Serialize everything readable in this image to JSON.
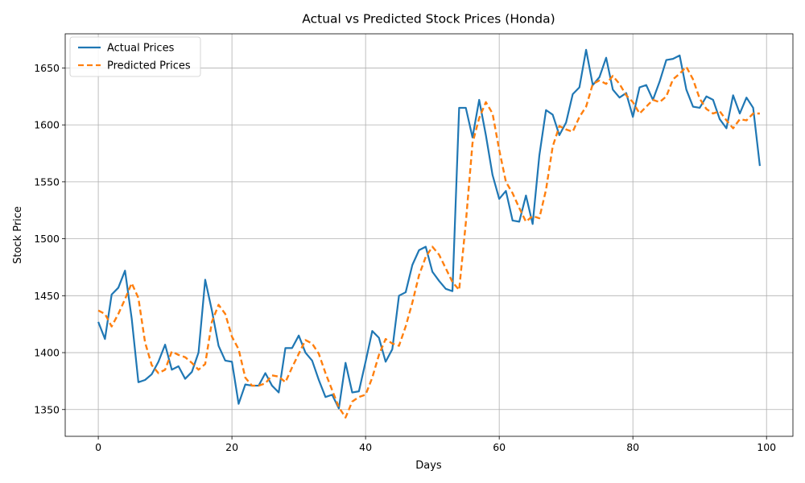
{
  "chart_data": {
    "type": "line",
    "title": "Actual vs Predicted Stock Prices (Honda)",
    "xlabel": "Days",
    "ylabel": "Stock Price",
    "xlim": [
      -4.95,
      103.95
    ],
    "ylim": [
      1326.5,
      1680
    ],
    "xticks": [
      0,
      20,
      40,
      60,
      80,
      100
    ],
    "yticks": [
      1350,
      1400,
      1450,
      1500,
      1550,
      1600,
      1650
    ],
    "grid": true,
    "legend_position": "top-left",
    "series": [
      {
        "name": "Actual Prices",
        "color": "#1f77b4",
        "style": "solid",
        "values": [
          1427,
          1412,
          1451,
          1457,
          1472,
          1430,
          1374,
          1376,
          1381,
          1392,
          1407,
          1385,
          1388,
          1377,
          1383,
          1400,
          1464,
          1437,
          1406,
          1393,
          1392,
          1355,
          1372,
          1371,
          1371,
          1382,
          1371,
          1365,
          1404,
          1404,
          1415,
          1400,
          1393,
          1376,
          1361,
          1363,
          1351,
          1391,
          1365,
          1366,
          1392,
          1419,
          1413,
          1392,
          1403,
          1450,
          1453,
          1477,
          1490,
          1493,
          1471,
          1463,
          1456,
          1454,
          1615,
          1615,
          1589,
          1622,
          1591,
          1556,
          1535,
          1542,
          1516,
          1515,
          1538,
          1513,
          1573,
          1613,
          1609,
          1591,
          1602,
          1627,
          1633,
          1666,
          1635,
          1642,
          1659,
          1631,
          1624,
          1628,
          1607,
          1633,
          1635,
          1622,
          1638,
          1657,
          1658,
          1661,
          1631,
          1616,
          1615,
          1625,
          1622,
          1605,
          1597,
          1626,
          1610,
          1624,
          1615,
          1564
        ]
      },
      {
        "name": "Predicted Prices",
        "color": "#ff7f0e",
        "style": "dashed",
        "values": [
          1437,
          1434,
          1423,
          1434,
          1447,
          1461,
          1448,
          1409,
          1389,
          1382,
          1385,
          1401,
          1398,
          1396,
          1391,
          1385,
          1390,
          1427,
          1442,
          1434,
          1414,
          1403,
          1378,
          1371,
          1371,
          1373,
          1380,
          1379,
          1374,
          1387,
          1399,
          1411,
          1408,
          1399,
          1382,
          1367,
          1352,
          1343,
          1357,
          1361,
          1363,
          1378,
          1398,
          1412,
          1408,
          1406,
          1423,
          1444,
          1468,
          1484,
          1493,
          1486,
          1474,
          1462,
          1455,
          1514,
          1584,
          1606,
          1620,
          1610,
          1578,
          1550,
          1540,
          1527,
          1515,
          1520,
          1518,
          1543,
          1581,
          1599,
          1596,
          1594,
          1607,
          1616,
          1636,
          1639,
          1636,
          1643,
          1636,
          1626,
          1620,
          1610,
          1616,
          1622,
          1620,
          1625,
          1640,
          1645,
          1651,
          1640,
          1623,
          1614,
          1610,
          1612,
          1604,
          1597,
          1605,
          1604,
          1610,
          1610
        ]
      }
    ]
  }
}
